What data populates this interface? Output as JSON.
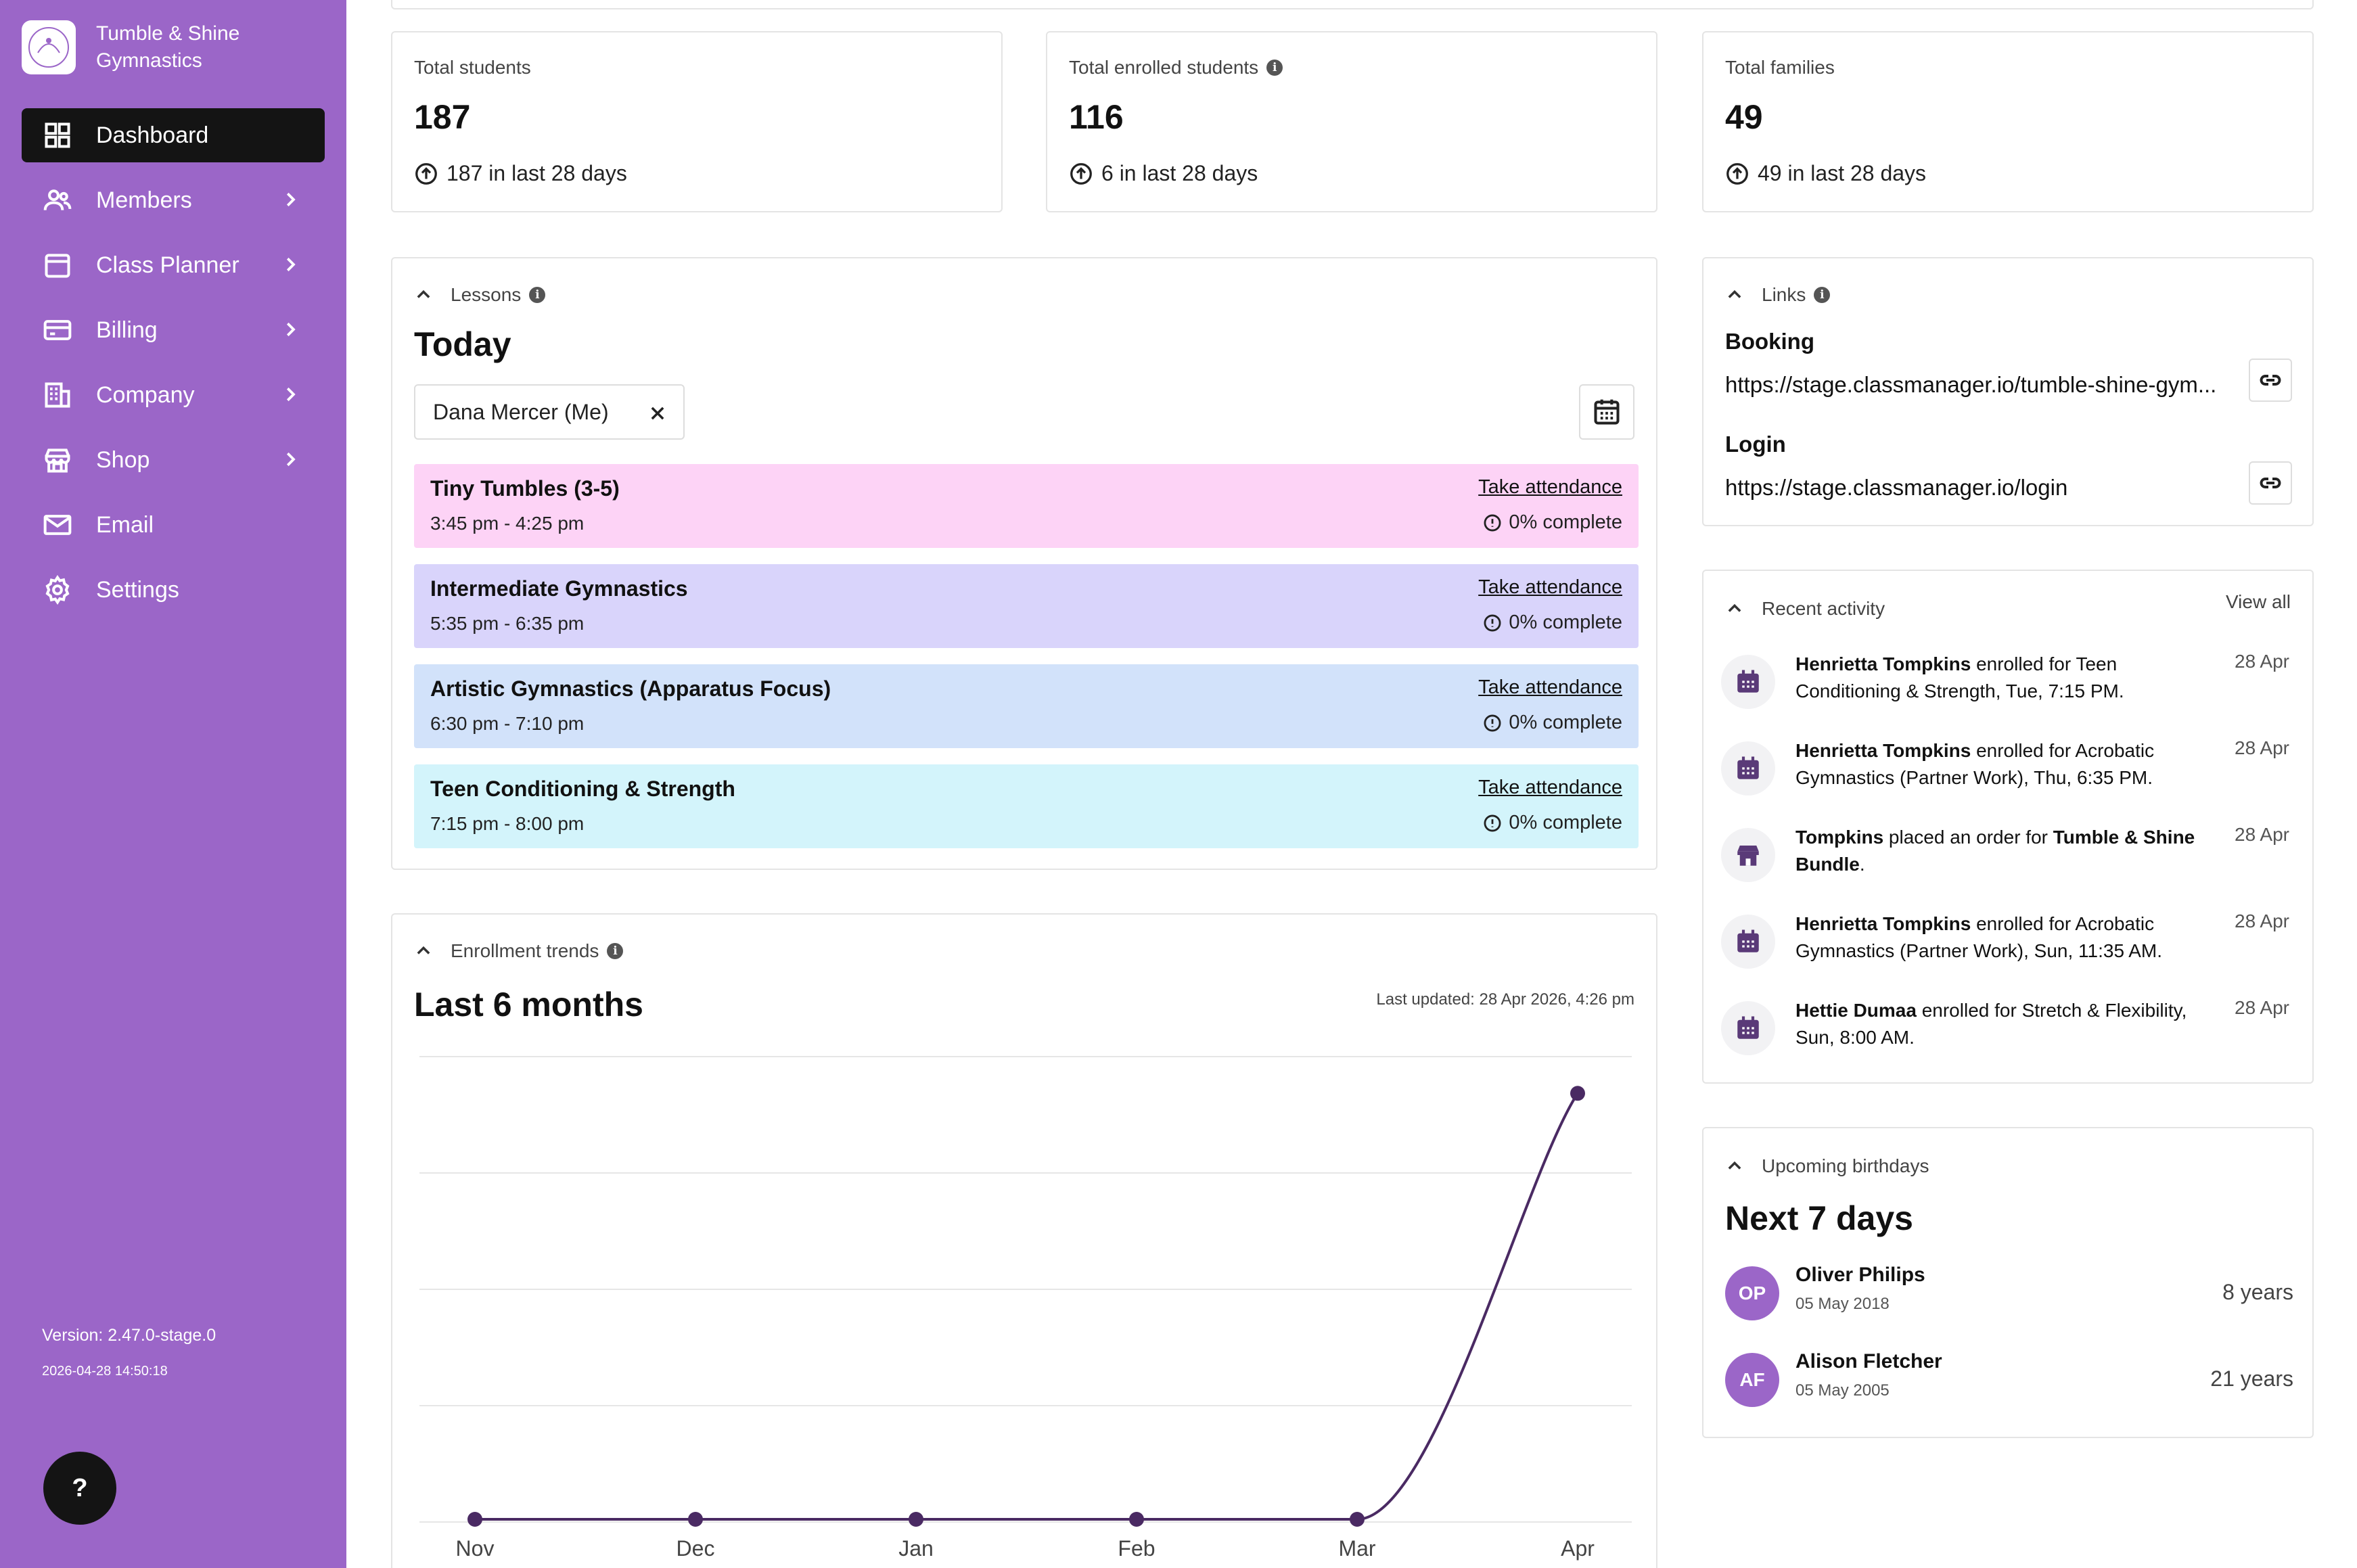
{
  "brand": {
    "name": "Tumble & Shine Gymnastics",
    "logo_text": "Tumble & Shine"
  },
  "nav": [
    {
      "label": "Dashboard",
      "icon": "dashboard-icon",
      "active": true
    },
    {
      "label": "Members",
      "icon": "members-icon"
    },
    {
      "label": "Class Planner",
      "icon": "calendar-icon"
    },
    {
      "label": "Billing",
      "icon": "credit-card-icon"
    },
    {
      "label": "Company",
      "icon": "building-icon"
    },
    {
      "label": "Shop",
      "icon": "shop-icon"
    },
    {
      "label": "Email",
      "icon": "mail-icon"
    },
    {
      "label": "Settings",
      "icon": "gear-icon"
    }
  ],
  "version": "Version: 2.47.0-stage.0",
  "build_date": "2026-04-28 14:50:18",
  "help_label": "?",
  "stats": [
    {
      "label": "Total students",
      "value": "187",
      "change": "187 in last 28 days"
    },
    {
      "label": "Total enrolled students",
      "value": "116",
      "change": "6 in last 28 days"
    },
    {
      "label": "Total families",
      "value": "49",
      "change": "49 in last 28 days"
    }
  ],
  "lessons": {
    "section": "Lessons",
    "title": "Today",
    "filter": "Dana Mercer (Me)",
    "items": [
      {
        "name": "Tiny Tumbles (3-5)",
        "time": "3:45 pm - 4:25 pm",
        "action": "Take attendance",
        "status": "0% complete",
        "color": "#fdd3f6"
      },
      {
        "name": "Intermediate Gymnastics",
        "time": "5:35 pm - 6:35 pm",
        "action": "Take attendance",
        "status": "0% complete",
        "color": "#d9d4fb"
      },
      {
        "name": "Artistic Gymnastics (Apparatus Focus)",
        "time": "6:30 pm - 7:10 pm",
        "action": "Take attendance",
        "status": "0% complete",
        "color": "#d2e2fa"
      },
      {
        "name": "Teen Conditioning & Strength",
        "time": "7:15 pm - 8:00 pm",
        "action": "Take attendance",
        "status": "0% complete",
        "color": "#d3f4fb"
      }
    ]
  },
  "enrollment": {
    "section": "Enrollment trends",
    "title": "Last 6 months",
    "last_updated": "Last updated: 28 Apr 2026, 4:26 pm"
  },
  "chart_data": {
    "type": "line",
    "categories": [
      "Nov",
      "Dec",
      "Jan",
      "Feb",
      "Mar",
      "Apr"
    ],
    "values": [
      0,
      0,
      0,
      0,
      0,
      116
    ],
    "ylim": [
      0,
      126
    ],
    "grid": true,
    "line_color": "#4a2a63"
  },
  "links": {
    "section": "Links",
    "items": [
      {
        "label": "Booking",
        "url": "https://stage.classmanager.io/tumble-shine-gym..."
      },
      {
        "label": "Login",
        "url": "https://stage.classmanager.io/login"
      }
    ]
  },
  "activity": {
    "section": "Recent activity",
    "view_all": "View all",
    "items": [
      {
        "icon": "calendar-icon",
        "actor": "Henrietta Tompkins",
        "text": " enrolled for Teen Conditioning & Strength, Tue, 7:15 PM.",
        "date": "28 Apr"
      },
      {
        "icon": "calendar-icon",
        "actor": "Henrietta Tompkins",
        "text": " enrolled for Acrobatic Gymnastics (Partner Work), Thu, 6:35 PM.",
        "date": "28 Apr"
      },
      {
        "icon": "shop-icon",
        "actor": "Tompkins",
        "text": " placed an order for ",
        "object": "Tumble & Shine Bundle",
        "tail": ".",
        "date": "28 Apr"
      },
      {
        "icon": "calendar-icon",
        "actor": "Henrietta Tompkins",
        "text": " enrolled for Acrobatic Gymnastics (Partner Work), Sun, 11:35 AM.",
        "date": "28 Apr"
      },
      {
        "icon": "calendar-icon",
        "actor": "Hettie Dumaa",
        "text": " enrolled for Stretch & Flexibility, Sun, 8:00 AM.",
        "date": "28 Apr"
      }
    ]
  },
  "birthdays": {
    "section": "Upcoming birthdays",
    "title": "Next 7 days",
    "items": [
      {
        "initials": "OP",
        "name": "Oliver Philips",
        "date": "05 May 2018",
        "age": "8 years"
      },
      {
        "initials": "AF",
        "name": "Alison Fletcher",
        "date": "05 May 2005",
        "age": "21 years"
      }
    ]
  },
  "colors": {
    "sidebar": "#9b66c8",
    "active_nav": "#141414",
    "accent": "#4a2a63"
  }
}
